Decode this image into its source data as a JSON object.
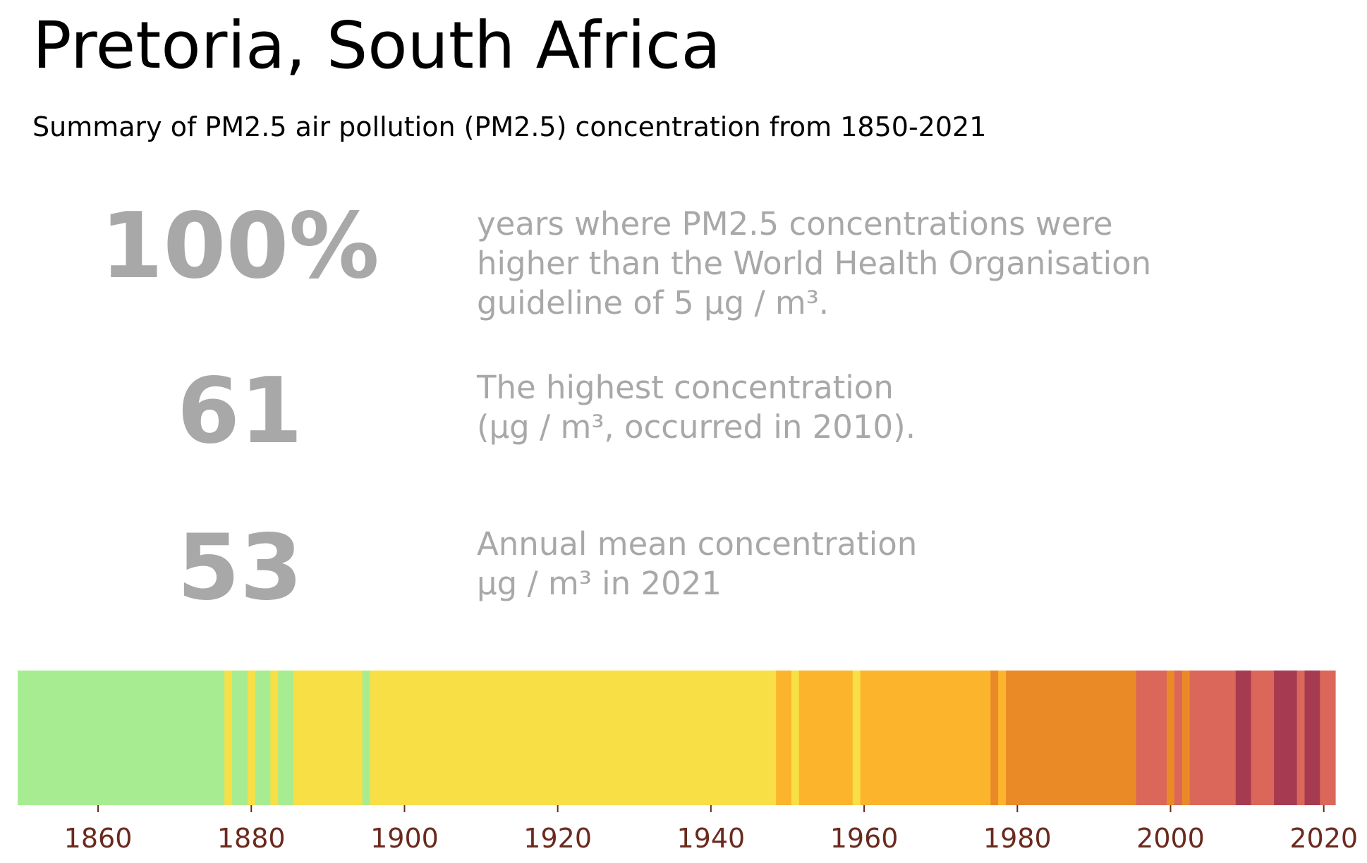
{
  "title": "Pretoria, South Africa",
  "subtitle": "Summary of PM2.5 air pollution (PM2.5) concentration from 1850-2021",
  "stats": [
    {
      "value": "100%",
      "lines": [
        "years where PM2.5 concentrations were",
        "higher than the World Health Organisation",
        "guideline of 5 µg / m³."
      ]
    },
    {
      "value": "61",
      "lines": [
        "The highest concentration",
        "(µg / m³, occurred in 2010)."
      ]
    },
    {
      "value": "53",
      "lines": [
        "Annual mean concentration",
        "µg / m³ in 2021"
      ]
    }
  ],
  "colors": {
    "stat_text": "#a8a8a8",
    "tick_label": "#6b2a1e",
    "green": "#a8ec91",
    "yellow": "#f8df46",
    "light_orange": "#fcb42c",
    "orange": "#ea8a27",
    "red": "#db675a",
    "dark_red": "#a63a50"
  },
  "chart_data": {
    "type": "heatmap",
    "x_axis": {
      "range": [
        1850,
        2022
      ],
      "ticks": [
        1860,
        1880,
        1900,
        1920,
        1940,
        1960,
        1980,
        2000,
        2020
      ]
    },
    "legend": "none",
    "grid": false,
    "year_bands": [
      {
        "start": 1850,
        "end": 1877,
        "color": "green"
      },
      {
        "start": 1877,
        "end": 1878,
        "color": "yellow"
      },
      {
        "start": 1878,
        "end": 1880,
        "color": "green"
      },
      {
        "start": 1880,
        "end": 1881,
        "color": "yellow"
      },
      {
        "start": 1881,
        "end": 1883,
        "color": "green"
      },
      {
        "start": 1883,
        "end": 1884,
        "color": "yellow"
      },
      {
        "start": 1884,
        "end": 1886,
        "color": "green"
      },
      {
        "start": 1886,
        "end": 1895,
        "color": "yellow"
      },
      {
        "start": 1895,
        "end": 1896,
        "color": "green"
      },
      {
        "start": 1896,
        "end": 1949,
        "color": "yellow"
      },
      {
        "start": 1949,
        "end": 1951,
        "color": "light_orange"
      },
      {
        "start": 1951,
        "end": 1952,
        "color": "yellow"
      },
      {
        "start": 1952,
        "end": 1959,
        "color": "light_orange"
      },
      {
        "start": 1959,
        "end": 1960,
        "color": "yellow"
      },
      {
        "start": 1960,
        "end": 1977,
        "color": "light_orange"
      },
      {
        "start": 1977,
        "end": 1978,
        "color": "orange"
      },
      {
        "start": 1978,
        "end": 1979,
        "color": "light_orange"
      },
      {
        "start": 1979,
        "end": 1996,
        "color": "orange"
      },
      {
        "start": 1996,
        "end": 2000,
        "color": "red"
      },
      {
        "start": 2000,
        "end": 2001,
        "color": "orange"
      },
      {
        "start": 2001,
        "end": 2002,
        "color": "red"
      },
      {
        "start": 2002,
        "end": 2003,
        "color": "orange"
      },
      {
        "start": 2003,
        "end": 2009,
        "color": "red"
      },
      {
        "start": 2009,
        "end": 2011,
        "color": "dark_red"
      },
      {
        "start": 2011,
        "end": 2014,
        "color": "red"
      },
      {
        "start": 2014,
        "end": 2017,
        "color": "dark_red"
      },
      {
        "start": 2017,
        "end": 2018,
        "color": "red"
      },
      {
        "start": 2018,
        "end": 2020,
        "color": "dark_red"
      },
      {
        "start": 2020,
        "end": 2022,
        "color": "red"
      }
    ]
  }
}
